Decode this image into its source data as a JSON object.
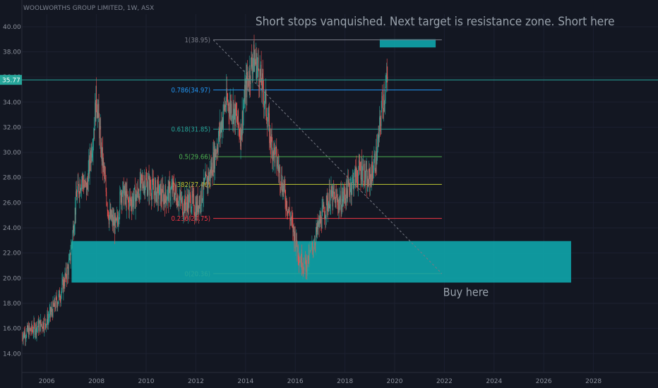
{
  "chart_data": {
    "type": "candlestick",
    "title": "WOOLWORTHS GROUP LIMITED, 1W, ASX",
    "ylim": [
      12.5,
      41.0
    ],
    "xlim": [
      2005.0,
      2030.0
    ],
    "y_ticks": [
      "14.00",
      "16.00",
      "18.00",
      "20.00",
      "22.00",
      "24.00",
      "26.00",
      "28.00",
      "30.00",
      "32.00",
      "34.00",
      "36.00",
      "38.00",
      "40.00"
    ],
    "x_ticks": [
      "2006",
      "2008",
      "2010",
      "2012",
      "2014",
      "2016",
      "2018",
      "2020",
      "2022",
      "2024",
      "2026",
      "2028"
    ],
    "last_price_label": "35.77",
    "last_price": 35.77,
    "price_path": [
      [
        2005.0,
        15.5
      ],
      [
        2005.5,
        16.0
      ],
      [
        2006.0,
        16.6
      ],
      [
        2006.5,
        18.5
      ],
      [
        2006.9,
        21.0
      ],
      [
        2007.2,
        26.5
      ],
      [
        2007.4,
        28.0
      ],
      [
        2007.6,
        27.0
      ],
      [
        2007.9,
        32.0
      ],
      [
        2008.0,
        34.6
      ],
      [
        2008.2,
        30.0
      ],
      [
        2008.5,
        25.0
      ],
      [
        2008.8,
        24.0
      ],
      [
        2009.0,
        27.0
      ],
      [
        2009.3,
        26.0
      ],
      [
        2009.6,
        26.5
      ],
      [
        2009.9,
        27.8
      ],
      [
        2010.3,
        27.0
      ],
      [
        2010.7,
        26.5
      ],
      [
        2011.1,
        27.0
      ],
      [
        2011.5,
        25.8
      ],
      [
        2011.8,
        26.2
      ],
      [
        2012.0,
        25.5
      ],
      [
        2012.3,
        27.0
      ],
      [
        2012.6,
        28.5
      ],
      [
        2012.9,
        31.0
      ],
      [
        2013.2,
        34.0
      ],
      [
        2013.5,
        33.5
      ],
      [
        2013.8,
        31.5
      ],
      [
        2014.0,
        35.0
      ],
      [
        2014.3,
        37.5
      ],
      [
        2014.5,
        36.8
      ],
      [
        2014.8,
        34.0
      ],
      [
        2015.0,
        31.0
      ],
      [
        2015.3,
        29.0
      ],
      [
        2015.6,
        26.5
      ],
      [
        2015.9,
        24.0
      ],
      [
        2016.2,
        21.5
      ],
      [
        2016.45,
        21.0
      ],
      [
        2016.7,
        22.5
      ],
      [
        2017.0,
        24.5
      ],
      [
        2017.4,
        26.5
      ],
      [
        2017.8,
        26.0
      ],
      [
        2018.1,
        27.0
      ],
      [
        2018.4,
        28.0
      ],
      [
        2018.7,
        28.8
      ],
      [
        2018.9,
        27.5
      ],
      [
        2019.1,
        28.5
      ],
      [
        2019.3,
        30.0
      ],
      [
        2019.5,
        34.0
      ],
      [
        2019.72,
        35.77
      ]
    ],
    "fib_levels": [
      {
        "label": "1(38.95)",
        "value": 38.95,
        "color": "#787b86"
      },
      {
        "label": "0.786(34.97)",
        "value": 34.97,
        "color": "#2196f3"
      },
      {
        "label": "0.618(31.85)",
        "value": 31.85,
        "color": "#26a69a"
      },
      {
        "label": "0.5(29.66)",
        "value": 29.66,
        "color": "#4caf50"
      },
      {
        "label": "0.382(27.46)",
        "value": 27.46,
        "color": "#c0ca33"
      },
      {
        "label": "0.236(24.75)",
        "value": 24.75,
        "color": "#f23645"
      },
      {
        "label": "0(20.36)",
        "value": 20.36,
        "color": "#26a69a"
      }
    ],
    "fib_x_range": [
      2012.7,
      2021.9
    ],
    "diagonal": {
      "from": [
        2012.7,
        38.95
      ],
      "to": [
        2021.9,
        20.36
      ]
    },
    "buy_zone": {
      "x": [
        2007.0,
        2027.1
      ],
      "y": [
        19.65,
        22.95
      ],
      "color": "#0fa3a8"
    },
    "short_zone": {
      "x": [
        2019.4,
        2021.65
      ],
      "y": [
        38.35,
        39.0
      ],
      "color": "#0fa3a8"
    },
    "annotations": [
      {
        "text": "Short stops vanquished. Next target is resistance zone. Short here",
        "x": 2014.4,
        "y": 40.1
      },
      {
        "text": "Buy here",
        "x": 2021.95,
        "y": 18.6
      }
    ],
    "colors": {
      "background": "#131722",
      "up": "#26a69a",
      "down": "#ef5350",
      "last_price": "#26a69a"
    }
  }
}
